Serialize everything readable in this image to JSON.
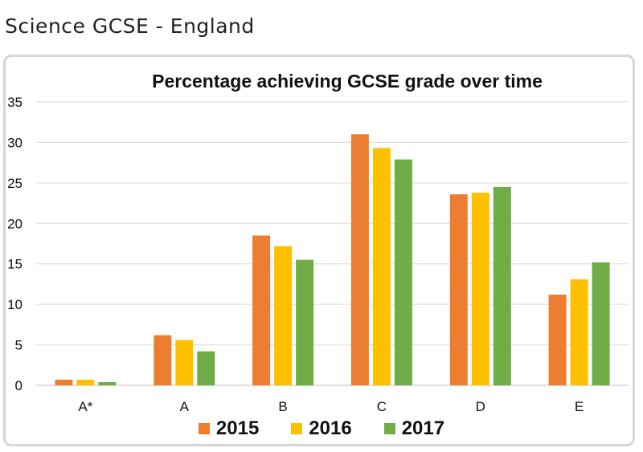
{
  "page": {
    "heading": "Science GCSE - England"
  },
  "chart_data": {
    "type": "bar",
    "title": "Percentage achieving GCSE grade over time",
    "xlabel": "",
    "ylabel": "",
    "ylim": [
      0,
      35
    ],
    "yticks": [
      0,
      5,
      10,
      15,
      20,
      25,
      30,
      35
    ],
    "grid": true,
    "legend_position": "bottom",
    "categories": [
      "A*",
      "A",
      "B",
      "C",
      "D",
      "E"
    ],
    "series": [
      {
        "name": "2015",
        "color": "#ED7D31",
        "values": [
          0.7,
          6.2,
          18.5,
          31.0,
          23.6,
          11.2
        ]
      },
      {
        "name": "2016",
        "color": "#FFC000",
        "values": [
          0.7,
          5.6,
          17.2,
          29.3,
          23.8,
          13.1
        ]
      },
      {
        "name": "2017",
        "color": "#70AD47",
        "values": [
          0.4,
          4.2,
          15.5,
          27.9,
          24.5,
          15.2
        ]
      }
    ]
  }
}
